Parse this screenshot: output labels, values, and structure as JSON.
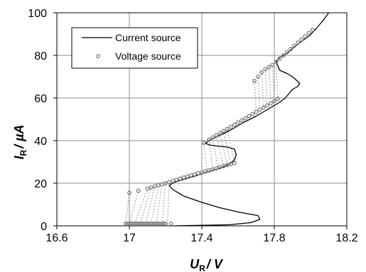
{
  "chart_data": {
    "type": "line",
    "xlabel": "U_R / V",
    "ylabel": "I_R / µA",
    "x_axis_label_parts": {
      "main": "U",
      "sub": "R",
      "unit": "/ V"
    },
    "y_axis_label_parts": {
      "main": "I",
      "sub": "R",
      "unit": "/ µA"
    },
    "xlim": [
      16.6,
      18.2
    ],
    "ylim": [
      0,
      100
    ],
    "xticks": [
      "16.6",
      "17",
      "17.4",
      "17.8",
      "18.2"
    ],
    "yticks": [
      "0",
      "20",
      "40",
      "60",
      "80",
      "100"
    ],
    "grid": true,
    "legend_position": "top-left",
    "series": [
      {
        "name": "Current source",
        "style": "line",
        "color": "#000000",
        "points": [
          [
            17.25,
            0
          ],
          [
            17.55,
            0.5
          ],
          [
            17.67,
            1.5
          ],
          [
            17.72,
            3
          ],
          [
            17.71,
            4.8
          ],
          [
            17.6,
            6.5
          ],
          [
            17.5,
            8.5
          ],
          [
            17.4,
            11
          ],
          [
            17.3,
            14
          ],
          [
            17.24,
            17
          ],
          [
            17.22,
            19
          ],
          [
            17.25,
            20.5
          ],
          [
            17.3,
            21.8
          ],
          [
            17.36,
            23.3
          ],
          [
            17.42,
            25
          ],
          [
            17.48,
            26.5
          ],
          [
            17.53,
            28
          ],
          [
            17.56,
            29.5
          ],
          [
            17.58,
            31
          ],
          [
            17.59,
            33.5
          ],
          [
            17.58,
            36
          ],
          [
            17.54,
            37
          ],
          [
            17.48,
            37.5
          ],
          [
            17.44,
            38
          ],
          [
            17.42,
            38.8
          ],
          [
            17.45,
            40.5
          ],
          [
            17.5,
            42.5
          ],
          [
            17.56,
            45
          ],
          [
            17.63,
            48.5
          ],
          [
            17.7,
            51.5
          ],
          [
            17.75,
            54
          ],
          [
            17.8,
            56.5
          ],
          [
            17.83,
            58
          ],
          [
            17.86,
            60
          ],
          [
            17.88,
            62
          ],
          [
            17.9,
            64
          ],
          [
            17.93,
            65.5
          ],
          [
            17.94,
            67
          ],
          [
            17.92,
            68.5
          ],
          [
            17.9,
            70
          ],
          [
            17.87,
            71.5
          ],
          [
            17.83,
            73
          ],
          [
            17.82,
            75
          ],
          [
            17.81,
            77
          ],
          [
            17.83,
            79
          ],
          [
            17.87,
            81
          ],
          [
            17.91,
            84
          ],
          [
            17.95,
            86.5
          ],
          [
            17.99,
            89
          ],
          [
            18.03,
            92.5
          ],
          [
            18.07,
            96.5
          ],
          [
            18.1,
            100
          ]
        ]
      },
      {
        "name": "Voltage source",
        "style": "markers",
        "color": "#7f7f7f",
        "points": [
          [
            16.98,
            1
          ],
          [
            16.99,
            1
          ],
          [
            17.0,
            1
          ],
          [
            17.01,
            1
          ],
          [
            17.02,
            1
          ],
          [
            17.03,
            1
          ],
          [
            17.04,
            1
          ],
          [
            17.05,
            1
          ],
          [
            17.06,
            1
          ],
          [
            17.07,
            1
          ],
          [
            17.08,
            1
          ],
          [
            17.09,
            1
          ],
          [
            17.1,
            1
          ],
          [
            17.11,
            1
          ],
          [
            17.12,
            1
          ],
          [
            17.13,
            1
          ],
          [
            17.14,
            1
          ],
          [
            17.15,
            1
          ],
          [
            17.16,
            1
          ],
          [
            17.17,
            1
          ],
          [
            17.18,
            1
          ],
          [
            17.19,
            1
          ],
          [
            17.2,
            1
          ],
          [
            17.23,
            1
          ],
          [
            17.0,
            15.5
          ],
          [
            17.05,
            16.5
          ],
          [
            17.1,
            17.5
          ],
          [
            17.12,
            18
          ],
          [
            17.14,
            18.5
          ],
          [
            17.16,
            19
          ],
          [
            17.18,
            19.5
          ],
          [
            17.2,
            20
          ],
          [
            17.22,
            20.5
          ],
          [
            17.24,
            21.1
          ],
          [
            17.26,
            21.7
          ],
          [
            17.28,
            22.2
          ],
          [
            17.3,
            22.7
          ],
          [
            17.32,
            23.2
          ],
          [
            17.34,
            23.7
          ],
          [
            17.36,
            24.2
          ],
          [
            17.38,
            24.7
          ],
          [
            17.4,
            25.1
          ],
          [
            17.42,
            25.5
          ],
          [
            17.44,
            26
          ],
          [
            17.46,
            26.5
          ],
          [
            17.48,
            27
          ],
          [
            17.5,
            27.5
          ],
          [
            17.52,
            28
          ],
          [
            17.54,
            28.5
          ],
          [
            17.56,
            29
          ],
          [
            17.58,
            29.5
          ],
          [
            17.41,
            39
          ],
          [
            17.44,
            40.5
          ],
          [
            17.46,
            41.5
          ],
          [
            17.48,
            42.5
          ],
          [
            17.5,
            43.5
          ],
          [
            17.52,
            44.5
          ],
          [
            17.54,
            45.5
          ],
          [
            17.56,
            46.5
          ],
          [
            17.58,
            47.5
          ],
          [
            17.6,
            48.5
          ],
          [
            17.62,
            49.5
          ],
          [
            17.64,
            50.5
          ],
          [
            17.66,
            51.5
          ],
          [
            17.68,
            52.5
          ],
          [
            17.7,
            53.5
          ],
          [
            17.72,
            54.5
          ],
          [
            17.74,
            55.5
          ],
          [
            17.76,
            56.5
          ],
          [
            17.78,
            57.5
          ],
          [
            17.8,
            58.5
          ],
          [
            17.82,
            59.5
          ],
          [
            17.69,
            68
          ],
          [
            17.71,
            70
          ],
          [
            17.73,
            72
          ],
          [
            17.75,
            73.5
          ],
          [
            17.77,
            74.5
          ],
          [
            17.79,
            75.5
          ],
          [
            17.81,
            77
          ],
          [
            17.83,
            78.5
          ],
          [
            17.85,
            80
          ],
          [
            17.87,
            81.5
          ],
          [
            17.89,
            83
          ],
          [
            17.91,
            84.5
          ],
          [
            17.93,
            86
          ],
          [
            17.95,
            87.5
          ],
          [
            17.97,
            89
          ],
          [
            17.99,
            90.5
          ],
          [
            18.01,
            92
          ]
        ]
      }
    ],
    "transitions": [
      [
        [
          16.98,
          1
        ],
        [
          17.0,
          15.5
        ]
      ],
      [
        [
          17.0,
          1
        ],
        [
          17.05,
          16.5
        ]
      ],
      [
        [
          17.03,
          1
        ],
        [
          17.1,
          17.5
        ]
      ],
      [
        [
          17.06,
          1
        ],
        [
          17.12,
          18
        ]
      ],
      [
        [
          17.09,
          1
        ],
        [
          17.14,
          18.5
        ]
      ],
      [
        [
          17.12,
          1
        ],
        [
          17.16,
          19
        ]
      ],
      [
        [
          17.15,
          1
        ],
        [
          17.18,
          19.5
        ]
      ],
      [
        [
          17.18,
          1
        ],
        [
          17.2,
          20
        ]
      ],
      [
        [
          17.21,
          1
        ],
        [
          17.22,
          20.5
        ]
      ],
      [
        [
          17.41,
          39
        ],
        [
          17.43,
          25.5
        ]
      ],
      [
        [
          17.44,
          40.5
        ],
        [
          17.46,
          26.5
        ]
      ],
      [
        [
          17.46,
          41.5
        ],
        [
          17.49,
          27.2
        ]
      ],
      [
        [
          17.48,
          42.5
        ],
        [
          17.52,
          28
        ]
      ],
      [
        [
          17.5,
          43.5
        ],
        [
          17.54,
          28.5
        ]
      ],
      [
        [
          17.52,
          44.5
        ],
        [
          17.56,
          29
        ]
      ],
      [
        [
          17.54,
          45.5
        ],
        [
          17.58,
          29.5
        ]
      ],
      [
        [
          17.69,
          68
        ],
        [
          17.7,
          53.5
        ]
      ],
      [
        [
          17.71,
          70
        ],
        [
          17.72,
          54.5
        ]
      ],
      [
        [
          17.73,
          72
        ],
        [
          17.74,
          55.5
        ]
      ],
      [
        [
          17.75,
          73.5
        ],
        [
          17.76,
          56.5
        ]
      ],
      [
        [
          17.77,
          74.5
        ],
        [
          17.78,
          57.5
        ]
      ],
      [
        [
          17.79,
          75.5
        ],
        [
          17.8,
          58.5
        ]
      ],
      [
        [
          17.81,
          77
        ],
        [
          17.82,
          59.5
        ]
      ]
    ]
  }
}
